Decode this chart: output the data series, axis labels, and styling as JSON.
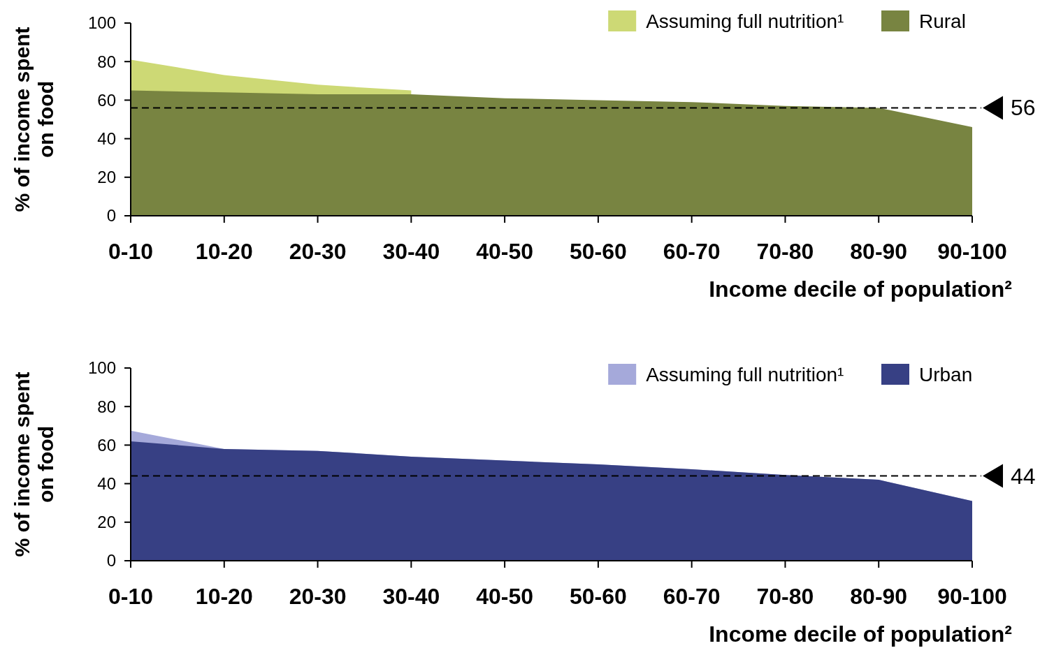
{
  "chart_data": [
    {
      "type": "area",
      "xlabel": "Income decile of population²",
      "ylabel": "% of income spent on food",
      "categories": [
        "0-10",
        "10-20",
        "20-30",
        "30-40",
        "40-50",
        "50-60",
        "60-70",
        "70-80",
        "80-90",
        "90-100"
      ],
      "series": [
        {
          "name": "Assuming full nutrition¹",
          "color": "#cdd975",
          "values": [
            81,
            73,
            68,
            65,
            null,
            null,
            null,
            null,
            null,
            null
          ]
        },
        {
          "name": "Rural",
          "color": "#788441",
          "values": [
            65,
            64,
            63,
            63,
            61,
            60,
            59,
            57,
            56,
            46
          ]
        }
      ],
      "ylim": [
        0,
        100
      ],
      "yticks": [
        0,
        20,
        40,
        60,
        80,
        100
      ],
      "grid": false,
      "legend": "top right",
      "ref_lines": [
        {
          "axis": "y",
          "value": 56,
          "label": "56",
          "color": "#000000",
          "line_style": "dashed"
        }
      ]
    },
    {
      "type": "area",
      "xlabel": "Income decile of population²",
      "ylabel": "% of income spent on food",
      "categories": [
        "0-10",
        "10-20",
        "20-30",
        "30-40",
        "40-50",
        "50-60",
        "60-70",
        "70-80",
        "80-90",
        "90-100"
      ],
      "series": [
        {
          "name": "Assuming full nutrition¹",
          "color": "#a5a9da",
          "values": [
            67.5,
            58,
            57,
            54,
            52,
            50,
            47.5,
            44.5,
            42,
            31
          ]
        },
        {
          "name": "Urban",
          "color": "#374084",
          "values": [
            62,
            58,
            57,
            54,
            52,
            50,
            47.5,
            44.5,
            42,
            31
          ]
        }
      ],
      "ylim": [
        0,
        100
      ],
      "yticks": [
        0,
        20,
        40,
        60,
        80,
        100
      ],
      "grid": false,
      "legend": "top right",
      "ref_lines": [
        {
          "axis": "y",
          "value": 44,
          "label": "44",
          "color": "#000000",
          "line_style": "dashed"
        }
      ]
    }
  ]
}
